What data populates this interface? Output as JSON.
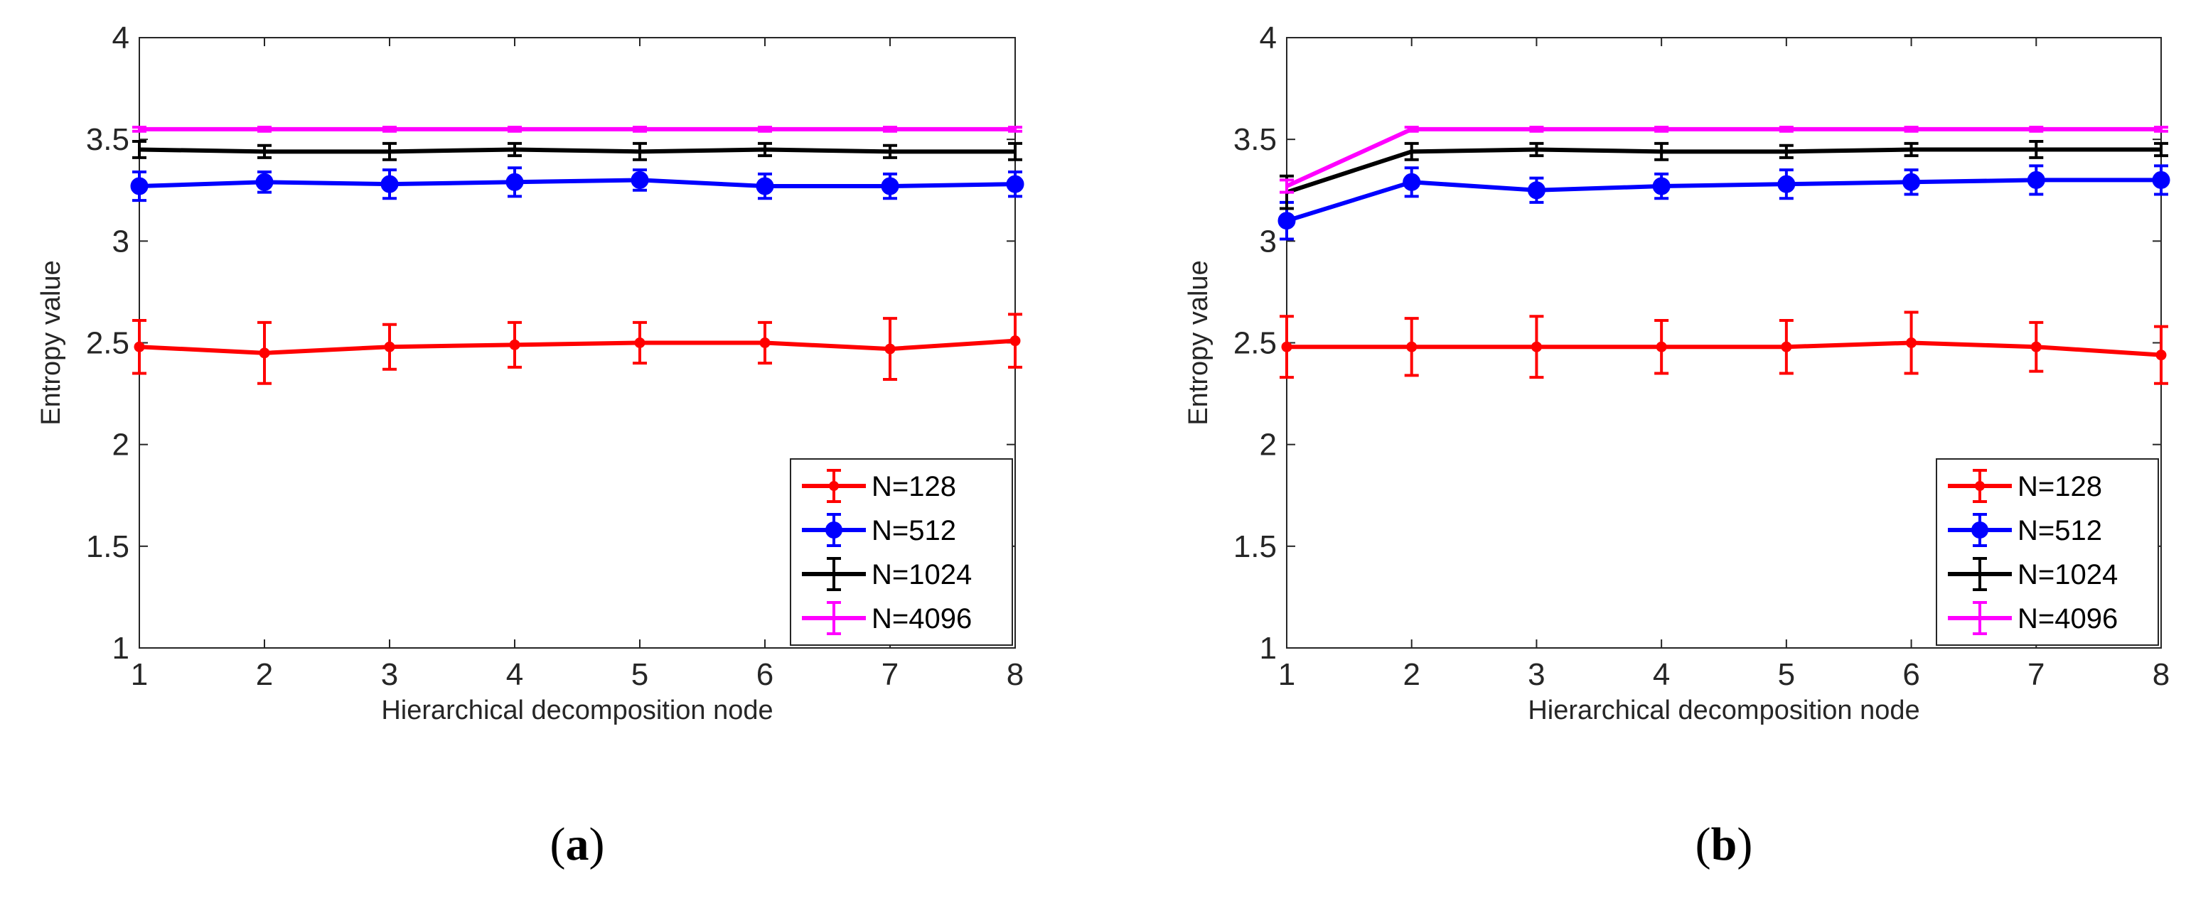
{
  "colors": {
    "N128": "#ff0000",
    "N512": "#0000ff",
    "N1024": "#000000",
    "N4096": "#ff00ff"
  },
  "chart_data": [
    {
      "type": "line",
      "panel_label": "a",
      "xlabel": "Hierarchical decomposition node",
      "ylabel": "Entropy value",
      "x": [
        1,
        2,
        3,
        4,
        5,
        6,
        7,
        8
      ],
      "xlim": [
        1,
        8
      ],
      "ylim": [
        1,
        4
      ],
      "xticks": [
        "1",
        "2",
        "3",
        "4",
        "5",
        "6",
        "7",
        "8"
      ],
      "yticks": [
        "1",
        "1.5",
        "2",
        "2.5",
        "3",
        "3.5",
        "4"
      ],
      "legend_position": "bottom-right",
      "series": [
        {
          "name": "N=128",
          "marker": "dot",
          "values": [
            2.48,
            2.45,
            2.48,
            2.49,
            2.5,
            2.5,
            2.47,
            2.51
          ],
          "errors": [
            0.13,
            0.15,
            0.11,
            0.11,
            0.1,
            0.1,
            0.15,
            0.13
          ]
        },
        {
          "name": "N=512",
          "marker": "circle",
          "values": [
            3.27,
            3.29,
            3.28,
            3.29,
            3.3,
            3.27,
            3.27,
            3.28
          ],
          "errors": [
            0.07,
            0.05,
            0.07,
            0.07,
            0.05,
            0.06,
            0.06,
            0.06
          ]
        },
        {
          "name": "N=1024",
          "marker": "none",
          "values": [
            3.45,
            3.44,
            3.44,
            3.45,
            3.44,
            3.45,
            3.44,
            3.44
          ],
          "errors": [
            0.04,
            0.03,
            0.04,
            0.03,
            0.04,
            0.03,
            0.03,
            0.04
          ]
        },
        {
          "name": "N=4096",
          "marker": "none",
          "values": [
            3.55,
            3.55,
            3.55,
            3.55,
            3.55,
            3.55,
            3.55,
            3.55
          ],
          "errors": [
            0.01,
            0.01,
            0.01,
            0.01,
            0.01,
            0.01,
            0.01,
            0.01
          ]
        }
      ]
    },
    {
      "type": "line",
      "panel_label": "b",
      "xlabel": "Hierarchical decomposition node",
      "ylabel": "Entropy value",
      "x": [
        1,
        2,
        3,
        4,
        5,
        6,
        7,
        8
      ],
      "xlim": [
        1,
        8
      ],
      "ylim": [
        1,
        4
      ],
      "xticks": [
        "1",
        "2",
        "3",
        "4",
        "5",
        "6",
        "7",
        "8"
      ],
      "yticks": [
        "1",
        "1.5",
        "2",
        "2.5",
        "3",
        "3.5",
        "4"
      ],
      "legend_position": "bottom-right",
      "series": [
        {
          "name": "N=128",
          "marker": "dot",
          "values": [
            2.48,
            2.48,
            2.48,
            2.48,
            2.48,
            2.5,
            2.48,
            2.44
          ],
          "errors": [
            0.15,
            0.14,
            0.15,
            0.13,
            0.13,
            0.15,
            0.12,
            0.14
          ]
        },
        {
          "name": "N=512",
          "marker": "circle",
          "values": [
            3.1,
            3.29,
            3.25,
            3.27,
            3.28,
            3.29,
            3.3,
            3.3
          ],
          "errors": [
            0.09,
            0.07,
            0.06,
            0.06,
            0.07,
            0.06,
            0.07,
            0.07
          ]
        },
        {
          "name": "N=1024",
          "marker": "none",
          "values": [
            3.24,
            3.44,
            3.45,
            3.44,
            3.44,
            3.45,
            3.45,
            3.45
          ],
          "errors": [
            0.08,
            0.04,
            0.03,
            0.04,
            0.03,
            0.03,
            0.04,
            0.03
          ]
        },
        {
          "name": "N=4096",
          "marker": "none",
          "values": [
            3.27,
            3.55,
            3.55,
            3.55,
            3.55,
            3.55,
            3.55,
            3.55
          ],
          "errors": [
            0.03,
            0.01,
            0.01,
            0.01,
            0.01,
            0.01,
            0.01,
            0.01
          ]
        }
      ]
    }
  ]
}
